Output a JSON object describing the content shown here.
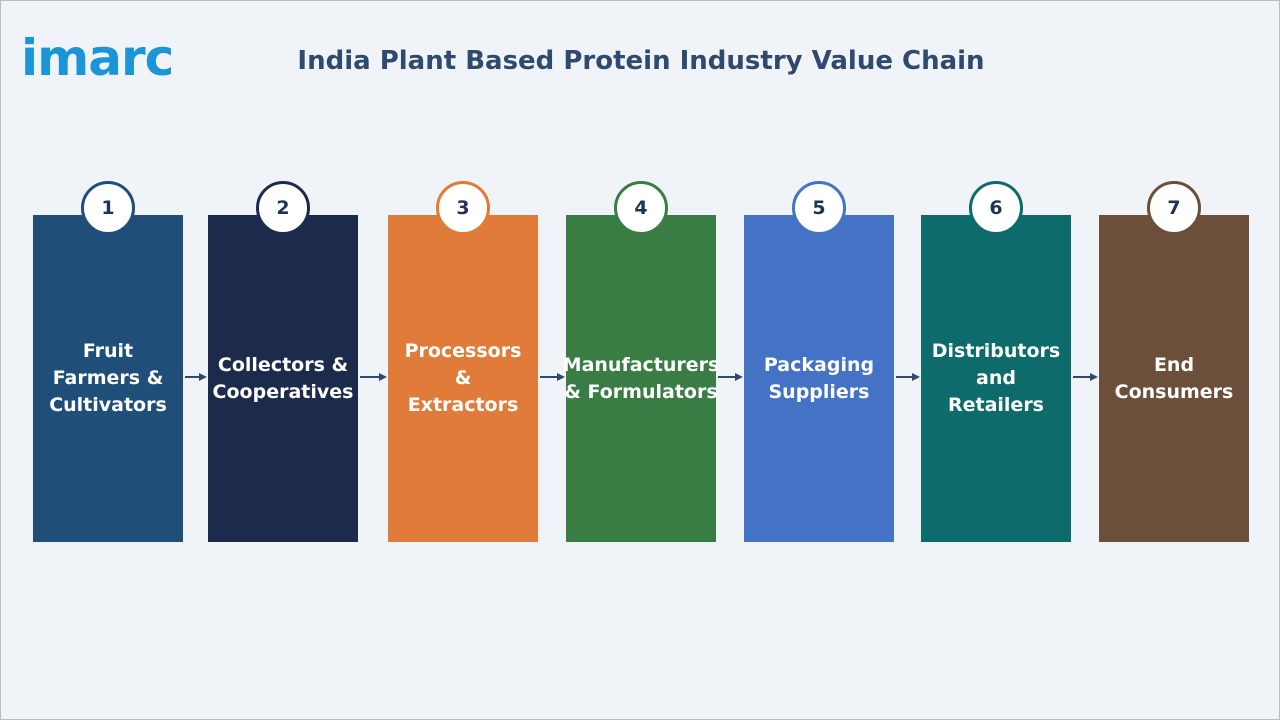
{
  "logo": "imarc",
  "title": "India Plant Based Protein Industry Value Chain",
  "steps": [
    {
      "number": 1,
      "label": "Fruit Farmers & Cultivators",
      "color": "#1f4e79"
    },
    {
      "number": 2,
      "label": "Collectors & Cooperatives",
      "color": "#1c2a4b"
    },
    {
      "number": 3,
      "label": "Processors & Extractors",
      "color": "#e07b39"
    },
    {
      "number": 4,
      "label": "Manufacturers & Formulators",
      "color": "#3a7d44"
    },
    {
      "number": 5,
      "label": "Packaging Suppliers",
      "color": "#4472c4"
    },
    {
      "number": 6,
      "label": "Distributors and Retailers",
      "color": "#0e6b6b"
    },
    {
      "number": 7,
      "label": "End Consumers",
      "color": "#6b4f3a"
    }
  ]
}
